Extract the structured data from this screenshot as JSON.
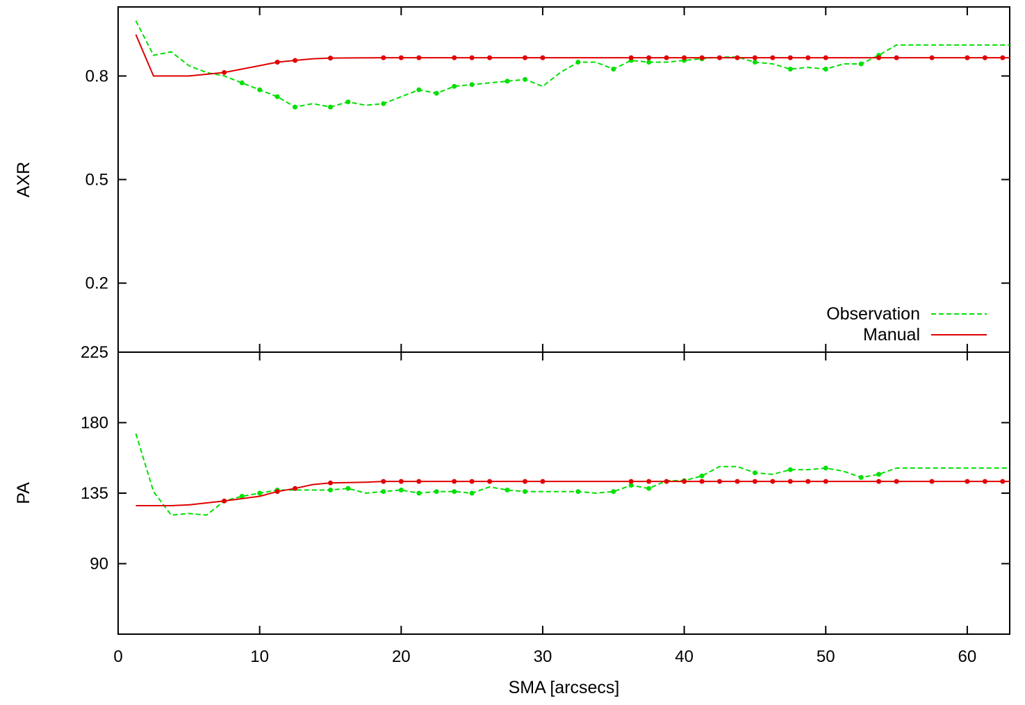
{
  "chart_data": [
    {
      "type": "line",
      "panel": "top",
      "ylabel": "AXR",
      "xlim": [
        0,
        63
      ],
      "ylim": [
        0.0,
        1.0
      ],
      "yticks": [
        0.2,
        0.5,
        0.8
      ],
      "ytick_labels": [
        "0.2",
        "0.5",
        "0.8"
      ],
      "legend": "bottom-right",
      "legend_entries": [
        "Observation",
        "Manual"
      ],
      "series": [
        {
          "name": "Observation",
          "color": "#00e000",
          "dash": "dashed",
          "x": [
            1.25,
            2.5,
            3.75,
            5.0,
            6.25,
            7.5,
            8.75,
            10.0,
            11.25,
            12.5,
            13.75,
            15.0,
            16.25,
            17.5,
            18.75,
            20.0,
            21.25,
            22.5,
            23.75,
            25.0,
            26.25,
            27.5,
            28.75,
            30.0,
            31.25,
            32.5,
            33.75,
            35.0,
            36.25,
            37.5,
            38.75,
            40.0,
            41.25,
            42.5,
            43.75,
            45.0,
            46.25,
            47.5,
            48.75,
            50.0,
            51.25,
            52.5,
            53.75,
            55.0,
            63.0
          ],
          "y": [
            0.96,
            0.86,
            0.87,
            0.83,
            0.81,
            0.8,
            0.78,
            0.76,
            0.74,
            0.71,
            0.72,
            0.71,
            0.725,
            0.715,
            0.72,
            0.74,
            0.76,
            0.75,
            0.77,
            0.775,
            0.78,
            0.785,
            0.79,
            0.77,
            0.81,
            0.84,
            0.84,
            0.82,
            0.845,
            0.84,
            0.84,
            0.845,
            0.85,
            0.855,
            0.855,
            0.84,
            0.835,
            0.82,
            0.825,
            0.82,
            0.835,
            0.835,
            0.86,
            0.89,
            0.89
          ],
          "markers_x": [
            8.75,
            10.0,
            11.25,
            12.5,
            15.0,
            16.25,
            18.75,
            21.25,
            22.5,
            23.75,
            25.0,
            27.5,
            28.75,
            32.5,
            35.0,
            36.25,
            37.5,
            40.0,
            41.25,
            45.0,
            47.5,
            50.0,
            52.5,
            53.75
          ]
        },
        {
          "name": "Manual",
          "color": "#e00000",
          "dash": "solid",
          "x": [
            1.25,
            2.5,
            5.0,
            7.5,
            10.0,
            11.25,
            12.5,
            13.75,
            15.0,
            18.75,
            63.0
          ],
          "y": [
            0.92,
            0.8,
            0.8,
            0.81,
            0.83,
            0.84,
            0.845,
            0.85,
            0.852,
            0.853,
            0.853
          ],
          "markers_x": [
            7.5,
            11.25,
            12.5,
            15.0,
            18.75,
            20.0,
            21.25,
            23.75,
            25.0,
            26.25,
            28.75,
            30.0,
            36.25,
            37.5,
            38.75,
            40.0,
            41.25,
            42.5,
            43.75,
            45.0,
            46.25,
            47.5,
            48.75,
            50.0,
            53.75,
            55.0,
            57.5,
            60.0,
            61.25,
            62.5
          ]
        }
      ]
    },
    {
      "type": "line",
      "panel": "bottom",
      "ylabel": "PA",
      "xlabel": "SMA [arcsecs]",
      "xlim": [
        0,
        63
      ],
      "ylim": [
        45,
        225
      ],
      "yticks": [
        90,
        135,
        180,
        225
      ],
      "ytick_labels": [
        "90",
        "135",
        "180",
        "225"
      ],
      "xticks": [
        0,
        10,
        20,
        30,
        40,
        50,
        60
      ],
      "xtick_labels": [
        "0",
        "10",
        "20",
        "30",
        "40",
        "50",
        "60"
      ],
      "series": [
        {
          "name": "Observation",
          "color": "#00e000",
          "dash": "dashed",
          "x": [
            1.25,
            2.5,
            3.75,
            5.0,
            6.25,
            7.5,
            8.75,
            10.0,
            11.25,
            12.5,
            13.75,
            15.0,
            16.25,
            17.5,
            18.75,
            20.0,
            21.25,
            22.5,
            23.75,
            25.0,
            26.25,
            27.5,
            28.75,
            30.0,
            31.25,
            32.5,
            33.75,
            35.0,
            36.25,
            37.5,
            38.75,
            40.0,
            41.25,
            42.5,
            43.75,
            45.0,
            46.25,
            47.5,
            48.75,
            50.0,
            51.25,
            52.5,
            53.75,
            55.0,
            63.0
          ],
          "y": [
            173,
            136,
            121,
            122,
            121,
            130,
            133,
            135,
            137,
            137,
            137,
            137,
            138,
            135,
            136,
            137,
            135,
            136,
            136,
            135,
            139,
            137,
            136,
            136,
            136,
            136,
            135,
            136,
            140,
            138,
            143,
            143,
            146,
            152,
            152,
            148,
            147,
            150,
            150,
            151,
            149,
            145,
            147,
            151,
            151
          ],
          "markers_x": [
            8.75,
            10.0,
            11.25,
            15.0,
            16.25,
            18.75,
            20.0,
            21.25,
            22.5,
            23.75,
            25.0,
            27.5,
            28.75,
            32.5,
            35.0,
            36.25,
            37.5,
            40.0,
            41.25,
            45.0,
            47.5,
            50.0,
            52.5,
            53.75
          ]
        },
        {
          "name": "Manual",
          "color": "#e00000",
          "dash": "solid",
          "x": [
            1.25,
            3.75,
            5.0,
            7.5,
            10.0,
            11.25,
            12.5,
            13.75,
            15.0,
            17.5,
            18.75,
            63.0
          ],
          "y": [
            127,
            127,
            127.5,
            130,
            133,
            136,
            138,
            140.5,
            141.5,
            142,
            142.5,
            142.5
          ],
          "markers_x": [
            7.5,
            11.25,
            12.5,
            15.0,
            18.75,
            20.0,
            21.25,
            23.75,
            25.0,
            26.25,
            28.75,
            30.0,
            36.25,
            37.5,
            38.75,
            40.0,
            41.25,
            42.5,
            43.75,
            45.0,
            46.25,
            47.5,
            48.75,
            50.0,
            53.75,
            55.0,
            57.5,
            60.0,
            61.25,
            62.5
          ]
        }
      ]
    }
  ]
}
